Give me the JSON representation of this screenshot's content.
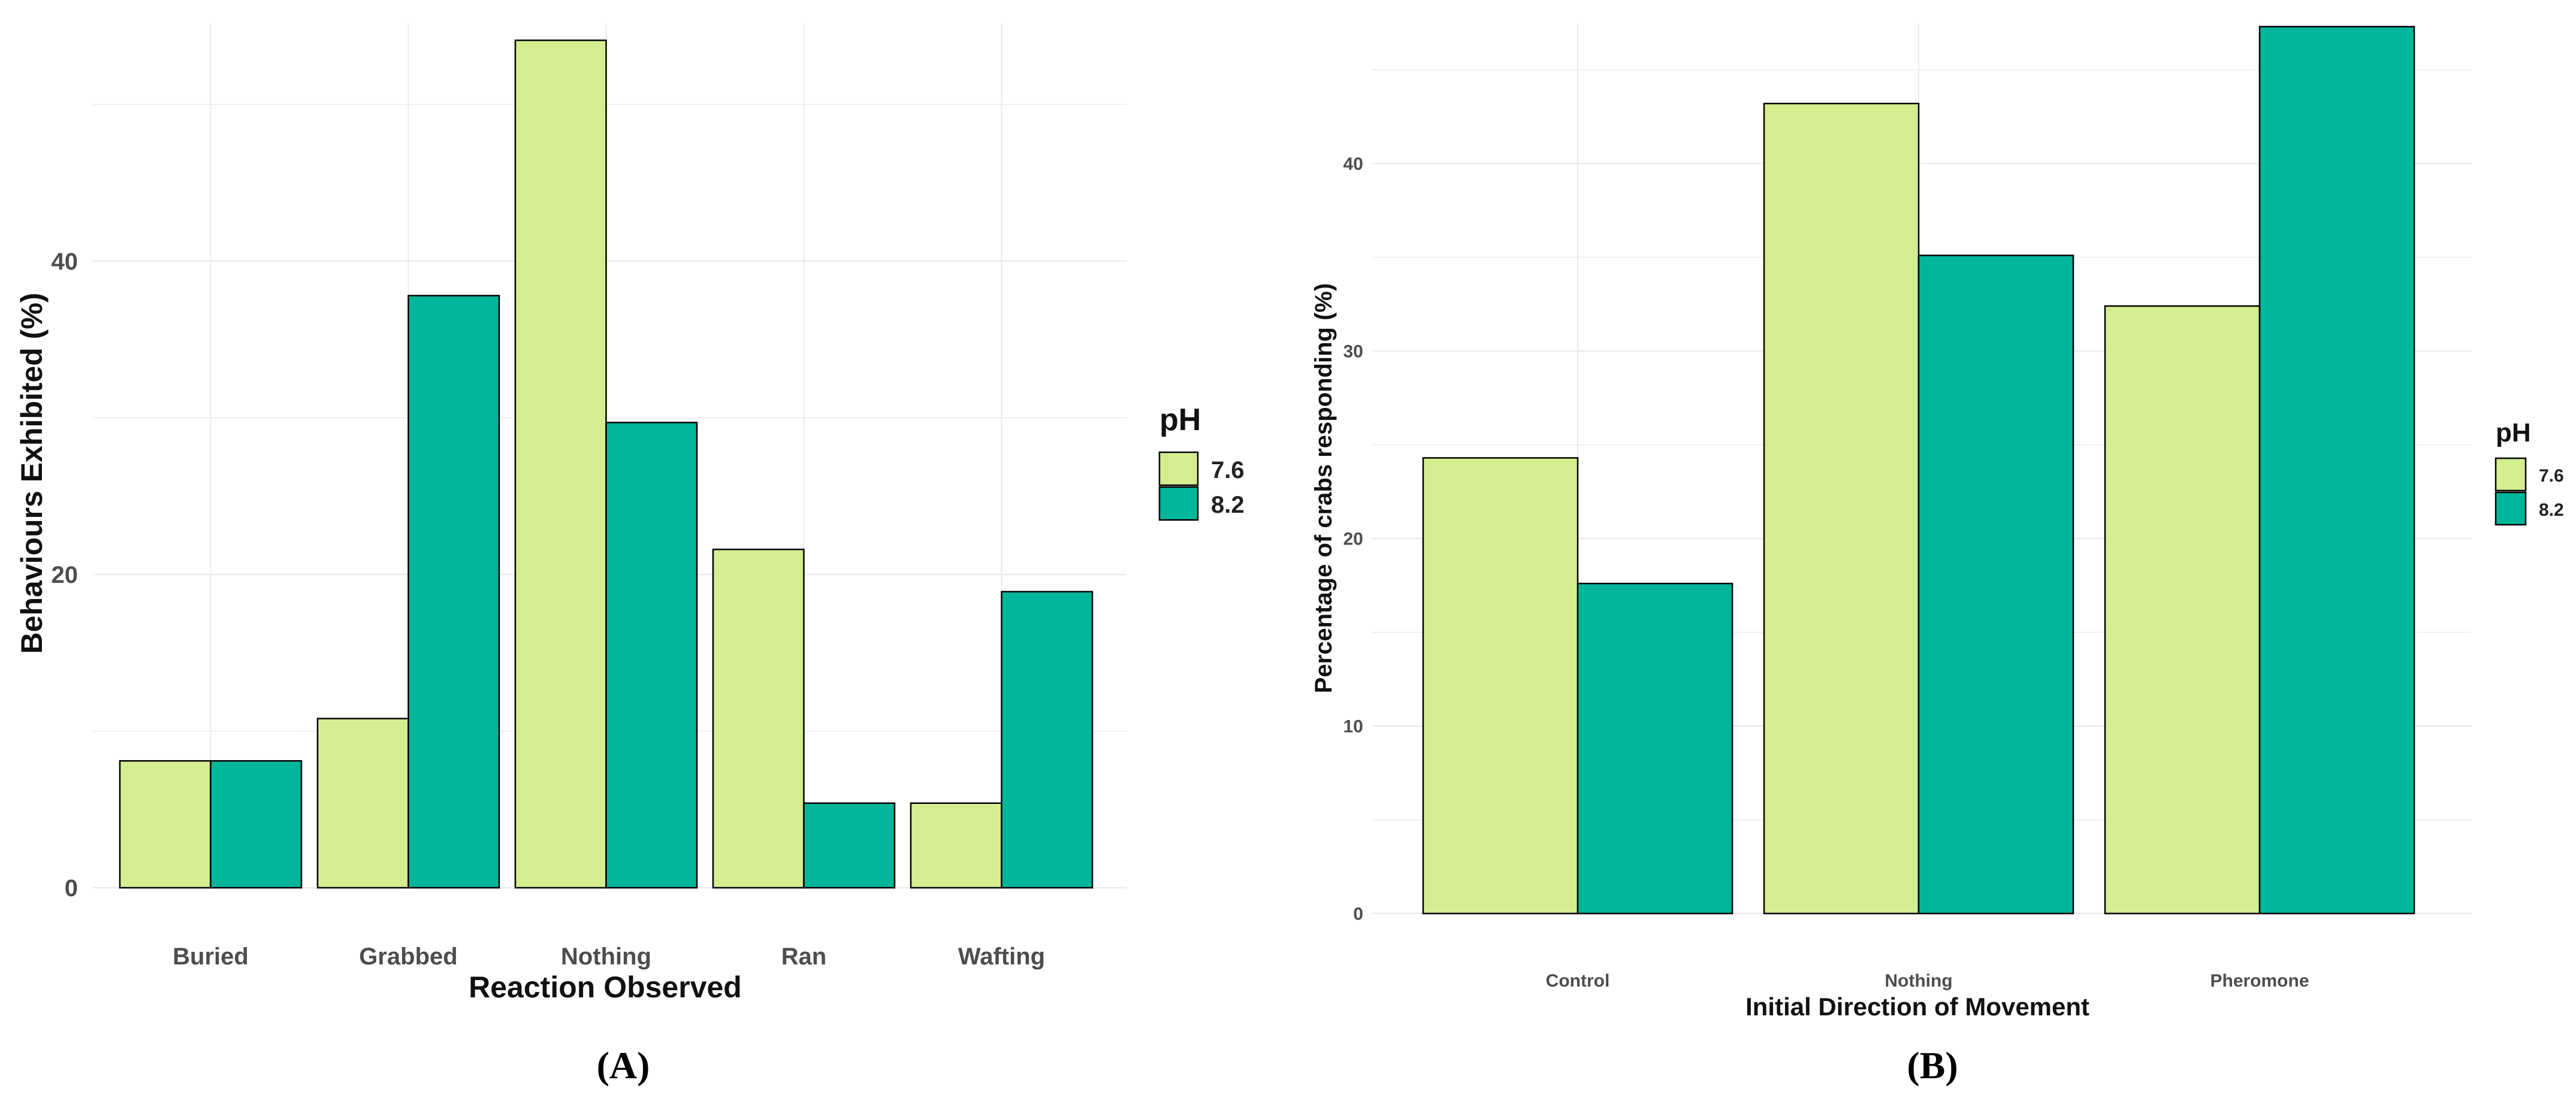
{
  "colors": {
    "low_ph": "#d4ed8f",
    "high_ph": "#00b69a",
    "grid": "#ebebeb",
    "bar_stroke": "#000000",
    "text": "#222222",
    "tick": "#4d4d4d"
  },
  "panels": [
    {
      "label": "(A)",
      "chart_data": {
        "type": "bar",
        "title": "",
        "xlabel": "Reaction Observed",
        "ylabel": "Behaviours Exhibited (%)",
        "categories": [
          "Buried",
          "Grabbed",
          "Nothing",
          "Ran",
          "Wafting"
        ],
        "ylim": [
          0,
          56
        ],
        "yticks": [
          0,
          20,
          40
        ],
        "yticks_labels": [
          "0",
          "20",
          "40"
        ],
        "minor_ticks": [
          10,
          30,
          50
        ],
        "legend": {
          "title": "pH",
          "position": "right"
        },
        "series": [
          {
            "name": "7.6",
            "color_key": "low_ph",
            "values": [
              8.1,
              10.8,
              54.1,
              21.6,
              5.4
            ]
          },
          {
            "name": "8.2",
            "color_key": "high_ph",
            "values": [
              8.1,
              37.8,
              29.7,
              5.4,
              18.9
            ]
          }
        ]
      }
    },
    {
      "label": "(B)",
      "chart_data": {
        "type": "bar",
        "title": "",
        "xlabel": "Initial Direction of Movement",
        "ylabel": "Percentage of crabs responding (%)",
        "categories": [
          "Control",
          "Nothing",
          "Pheromone"
        ],
        "ylim": [
          0,
          47.3
        ],
        "yticks": [
          0,
          10,
          20,
          30,
          40
        ],
        "yticks_labels": [
          "0",
          "10",
          "20",
          "30",
          "40"
        ],
        "minor_ticks": [
          5,
          15,
          25,
          35,
          45
        ],
        "legend": {
          "title": "pH",
          "position": "right"
        },
        "series": [
          {
            "name": "7.6",
            "color_key": "low_ph",
            "values": [
              24.3,
              43.2,
              32.4
            ]
          },
          {
            "name": "8.2",
            "color_key": "high_ph",
            "values": [
              17.6,
              35.1,
              47.3
            ]
          }
        ]
      }
    }
  ]
}
